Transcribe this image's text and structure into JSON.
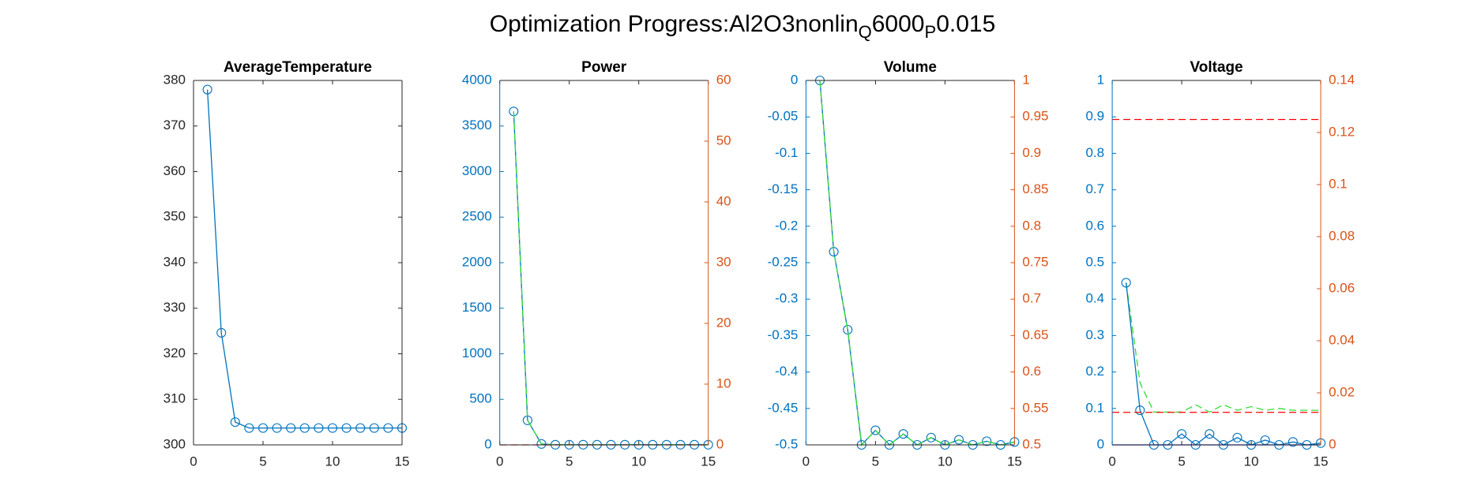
{
  "title": [
    "Optimization Progress:Al2O3nonlin",
    "Q",
    "6000",
    "P",
    "0.015"
  ],
  "chart_data": [
    {
      "type": "line",
      "title": "AverageTemperature",
      "x": [
        1,
        2,
        3,
        4,
        5,
        6,
        7,
        8,
        9,
        10,
        11,
        12,
        13,
        14,
        15
      ],
      "xlim": [
        0,
        15
      ],
      "xticks": [
        0,
        5,
        10,
        15
      ],
      "ylim": [
        300,
        380
      ],
      "yticks": [
        300,
        310,
        320,
        330,
        340,
        350,
        360,
        370,
        380
      ],
      "series": [
        {
          "color": "#0072bd",
          "marker": "o",
          "values": [
            378,
            324.6,
            305,
            303.7,
            303.7,
            303.7,
            303.7,
            303.7,
            303.7,
            303.7,
            303.7,
            303.7,
            303.7,
            303.7,
            303.7
          ]
        }
      ]
    },
    {
      "type": "line",
      "title": "Power",
      "x": [
        1,
        2,
        3,
        4,
        5,
        6,
        7,
        8,
        9,
        10,
        11,
        12,
        13,
        14,
        15
      ],
      "xlim": [
        0,
        15
      ],
      "xticks": [
        0,
        5,
        10,
        15
      ],
      "ylim": [
        0,
        4000
      ],
      "yticks": [
        0,
        500,
        1000,
        1500,
        2000,
        2500,
        3000,
        3500,
        4000
      ],
      "y2lim": [
        0,
        60
      ],
      "y2ticks": [
        0,
        10,
        20,
        30,
        40,
        50,
        60
      ],
      "series": [
        {
          "color": "#0072bd",
          "marker": "o",
          "values": [
            3660,
            270,
            10,
            2,
            2,
            2,
            2,
            2,
            2,
            2,
            2,
            2,
            2,
            2,
            2
          ]
        },
        {
          "color": "#33dd33",
          "dash": true,
          "values": [
            3660,
            270,
            10,
            2,
            2,
            2,
            2,
            2,
            2,
            2,
            2,
            2,
            2,
            2,
            2
          ]
        },
        {
          "color": "#ff0000",
          "dash": true,
          "axis": "y2",
          "x": [
            0,
            15
          ],
          "values": [
            0,
            0
          ]
        }
      ]
    },
    {
      "type": "line",
      "title": "Volume",
      "x": [
        1,
        2,
        3,
        4,
        5,
        6,
        7,
        8,
        9,
        10,
        11,
        12,
        13,
        14,
        15
      ],
      "xlim": [
        0,
        15
      ],
      "xticks": [
        0,
        5,
        10,
        15
      ],
      "ylim": [
        -0.5,
        0
      ],
      "yticks": [
        -0.5,
        -0.45,
        -0.4,
        -0.35,
        -0.3,
        -0.25,
        -0.2,
        -0.15,
        -0.1,
        -0.05,
        0
      ],
      "y2lim": [
        0.5,
        1
      ],
      "y2ticks": [
        0.5,
        0.55,
        0.6,
        0.65,
        0.7,
        0.75,
        0.8,
        0.85,
        0.9,
        0.95,
        1
      ],
      "series": [
        {
          "color": "#0072bd",
          "marker": "o",
          "values": [
            0,
            -0.235,
            -0.342,
            -0.5,
            -0.48,
            -0.5,
            -0.485,
            -0.5,
            -0.49,
            -0.5,
            -0.493,
            -0.5,
            -0.495,
            -0.5,
            -0.496
          ]
        },
        {
          "color": "#33dd33",
          "dash": true,
          "values": [
            0,
            -0.235,
            -0.342,
            -0.5,
            -0.48,
            -0.5,
            -0.485,
            -0.5,
            -0.49,
            -0.5,
            -0.493,
            -0.5,
            -0.495,
            -0.5,
            -0.496
          ]
        }
      ]
    },
    {
      "type": "line",
      "title": "Voltage",
      "x": [
        1,
        2,
        3,
        4,
        5,
        6,
        7,
        8,
        9,
        10,
        11,
        12,
        13,
        14,
        15
      ],
      "xlim": [
        0,
        15
      ],
      "xticks": [
        0,
        5,
        10,
        15
      ],
      "ylim": [
        0,
        1
      ],
      "yticks": [
        0,
        0.1,
        0.2,
        0.3,
        0.4,
        0.5,
        0.6,
        0.7,
        0.8,
        0.9,
        1
      ],
      "y2lim": [
        0,
        0.14
      ],
      "y2ticks": [
        0,
        0.02,
        0.04,
        0.06,
        0.08,
        0.1,
        0.12,
        0.14
      ],
      "series": [
        {
          "color": "#0000ff",
          "x": [
            0,
            15
          ],
          "values": [
            0,
            0
          ]
        },
        {
          "color": "#33dd33",
          "dash": true,
          "values": [
            0.445,
            0.17,
            0.09,
            0.09,
            0.09,
            0.11,
            0.09,
            0.11,
            0.095,
            0.105,
            0.095,
            0.1,
            0.095,
            0.095,
            0.095
          ]
        },
        {
          "color": "#0072bd",
          "marker": "o",
          "values": [
            0.445,
            0.095,
            0,
            0,
            0.03,
            0,
            0.03,
            0,
            0.02,
            0,
            0.013,
            0,
            0.008,
            0,
            0.005
          ]
        },
        {
          "color": "#ff0000",
          "dash": true,
          "axis": "y2",
          "x": [
            0,
            15
          ],
          "values": [
            0.125,
            0.125
          ]
        },
        {
          "color": "#ff0000",
          "dash": true,
          "axis": "y2",
          "x": [
            0,
            15
          ],
          "values": [
            0.0125,
            0.0125
          ]
        }
      ]
    }
  ]
}
